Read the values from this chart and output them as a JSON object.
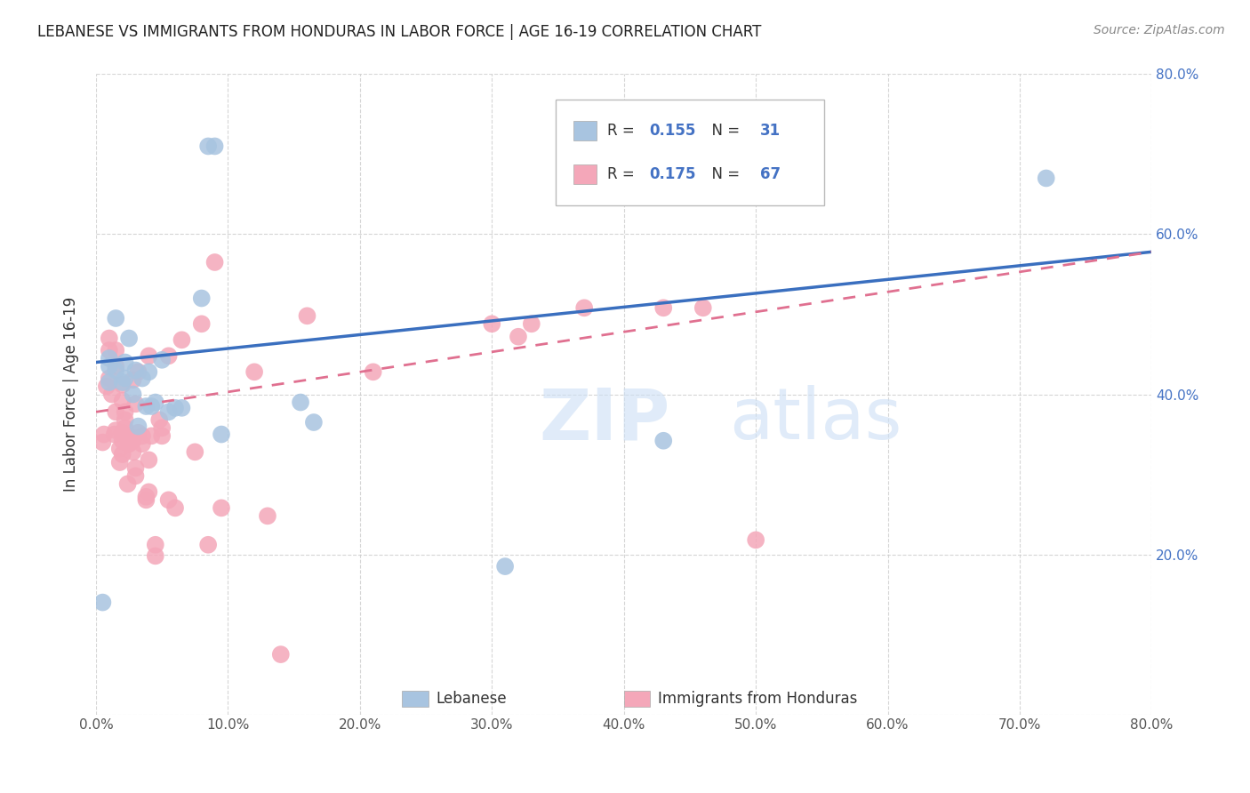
{
  "title": "LEBANESE VS IMMIGRANTS FROM HONDURAS IN LABOR FORCE | AGE 16-19 CORRELATION CHART",
  "source": "Source: ZipAtlas.com",
  "ylabel": "In Labor Force | Age 16-19",
  "xlim": [
    0.0,
    0.8
  ],
  "ylim": [
    0.0,
    0.8
  ],
  "blue_R": "0.155",
  "blue_N": "31",
  "pink_R": "0.175",
  "pink_N": "67",
  "blue_color": "#a8c4e0",
  "pink_color": "#f4a7b9",
  "blue_line_color": "#3a6fbf",
  "pink_line_color": "#e07090",
  "blue_line_start_y": 0.44,
  "blue_line_end_y": 0.578,
  "pink_line_start_y": 0.378,
  "pink_line_end_y": 0.578,
  "blue_scatter_x": [
    0.005,
    0.01,
    0.01,
    0.01,
    0.015,
    0.015,
    0.02,
    0.022,
    0.022,
    0.025,
    0.028,
    0.03,
    0.032,
    0.035,
    0.038,
    0.04,
    0.042,
    0.045,
    0.05,
    0.055,
    0.06,
    0.065,
    0.08,
    0.085,
    0.09,
    0.095,
    0.155,
    0.165,
    0.31,
    0.43,
    0.72
  ],
  "blue_scatter_y": [
    0.14,
    0.415,
    0.435,
    0.445,
    0.43,
    0.495,
    0.415,
    0.42,
    0.44,
    0.47,
    0.4,
    0.43,
    0.36,
    0.42,
    0.385,
    0.428,
    0.385,
    0.39,
    0.443,
    0.378,
    0.383,
    0.383,
    0.52,
    0.71,
    0.71,
    0.35,
    0.39,
    0.365,
    0.185,
    0.342,
    0.67
  ],
  "pink_scatter_x": [
    0.005,
    0.006,
    0.008,
    0.01,
    0.01,
    0.01,
    0.012,
    0.014,
    0.015,
    0.015,
    0.015,
    0.015,
    0.018,
    0.018,
    0.02,
    0.02,
    0.02,
    0.02,
    0.02,
    0.022,
    0.022,
    0.022,
    0.024,
    0.025,
    0.025,
    0.028,
    0.028,
    0.028,
    0.03,
    0.03,
    0.03,
    0.032,
    0.032,
    0.035,
    0.035,
    0.038,
    0.038,
    0.04,
    0.04,
    0.04,
    0.042,
    0.045,
    0.045,
    0.048,
    0.05,
    0.05,
    0.055,
    0.055,
    0.06,
    0.065,
    0.075,
    0.08,
    0.085,
    0.09,
    0.095,
    0.12,
    0.13,
    0.14,
    0.16,
    0.21,
    0.3,
    0.32,
    0.33,
    0.37,
    0.43,
    0.46,
    0.5
  ],
  "pink_scatter_y": [
    0.34,
    0.35,
    0.41,
    0.42,
    0.455,
    0.47,
    0.4,
    0.35,
    0.355,
    0.378,
    0.435,
    0.455,
    0.315,
    0.332,
    0.325,
    0.342,
    0.352,
    0.392,
    0.412,
    0.358,
    0.368,
    0.378,
    0.288,
    0.338,
    0.348,
    0.328,
    0.342,
    0.418,
    0.298,
    0.308,
    0.388,
    0.352,
    0.428,
    0.338,
    0.348,
    0.268,
    0.272,
    0.278,
    0.318,
    0.448,
    0.348,
    0.198,
    0.212,
    0.368,
    0.348,
    0.358,
    0.268,
    0.448,
    0.258,
    0.468,
    0.328,
    0.488,
    0.212,
    0.565,
    0.258,
    0.428,
    0.248,
    0.075,
    0.498,
    0.428,
    0.488,
    0.472,
    0.488,
    0.508,
    0.508,
    0.508,
    0.218
  ]
}
